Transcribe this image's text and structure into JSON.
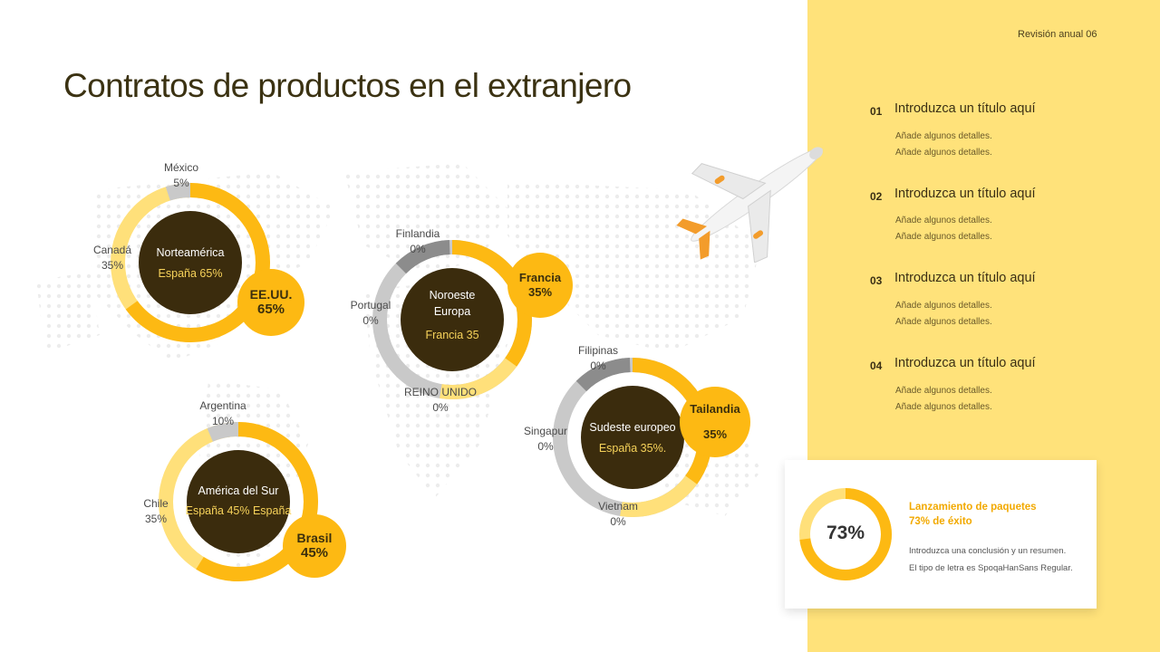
{
  "header": {
    "label": "Revisión anual 06"
  },
  "title": "Contratos de productos en el extranjero",
  "regions": {
    "north_america": {
      "center_title": "Norteamérica",
      "center_sub": "España 65%",
      "badge_name": "EE.UU.",
      "badge_value": "65%",
      "labels": [
        {
          "name": "México",
          "value": "5%"
        },
        {
          "name": "Canadá",
          "value": "35%"
        }
      ]
    },
    "northwest_europe": {
      "center_title_1": "Noroeste",
      "center_title_2": "Europa",
      "center_sub": "Francia 35",
      "badge_name": "Francia",
      "badge_value": "35%",
      "labels": [
        {
          "name": "Finlandia",
          "value": "0%"
        },
        {
          "name": "Portugal",
          "value": "0%"
        },
        {
          "name": "REINO UNIDO",
          "value": "0%"
        }
      ]
    },
    "south_america": {
      "center_title": "América del Sur",
      "center_sub": "España 45% España",
      "badge_name": "Brasil",
      "badge_value": "45%",
      "labels": [
        {
          "name": "Argentina",
          "value": "10%"
        },
        {
          "name": "Chile",
          "value": "35%"
        }
      ]
    },
    "southeast_europe": {
      "center_title": "Sudeste europeo",
      "center_sub": "España 35%.",
      "badge_name": "Tailandia",
      "badge_value": "35%",
      "labels": [
        {
          "name": "Filipinas",
          "value": "0%"
        },
        {
          "name": "Singapur",
          "value": "0%"
        },
        {
          "name": "Vietnam",
          "value": "0%"
        }
      ]
    }
  },
  "list": [
    {
      "num": "01",
      "title": "Introduzca un título aquí",
      "details": [
        "Añade algunos detalles.",
        "Añade algunos detalles."
      ]
    },
    {
      "num": "02",
      "title": "Introduzca un título aquí",
      "details": [
        "Añade algunos detalles.",
        "Añade algunos detalles."
      ]
    },
    {
      "num": "03",
      "title": "Introduzca un título aquí",
      "details": [
        "Añade algunos detalles.",
        "Añade algunos detalles."
      ]
    },
    {
      "num": "04",
      "title": "Introduzca un título aquí",
      "details": [
        "Añade algunos detalles.",
        "Añade algunos detalles."
      ]
    }
  ],
  "card": {
    "percent": "73%",
    "percent_value": 73,
    "title_1": "Lanzamiento de paquetes",
    "title_2": "73% de éxito",
    "text_1": "Introduzca una conclusión y un resumen.",
    "text_2": "El tipo de letra es SpoqaHanSans Regular."
  },
  "colors": {
    "panel": "#ffe27a",
    "accent": "#fdb913",
    "light": "#ffe07a",
    "gray": "#c9c9c9",
    "dark_gray": "#8c8c8c",
    "center": "#3b2c0d"
  },
  "icons": [
    "airplane-icon",
    "world-map-dots"
  ]
}
